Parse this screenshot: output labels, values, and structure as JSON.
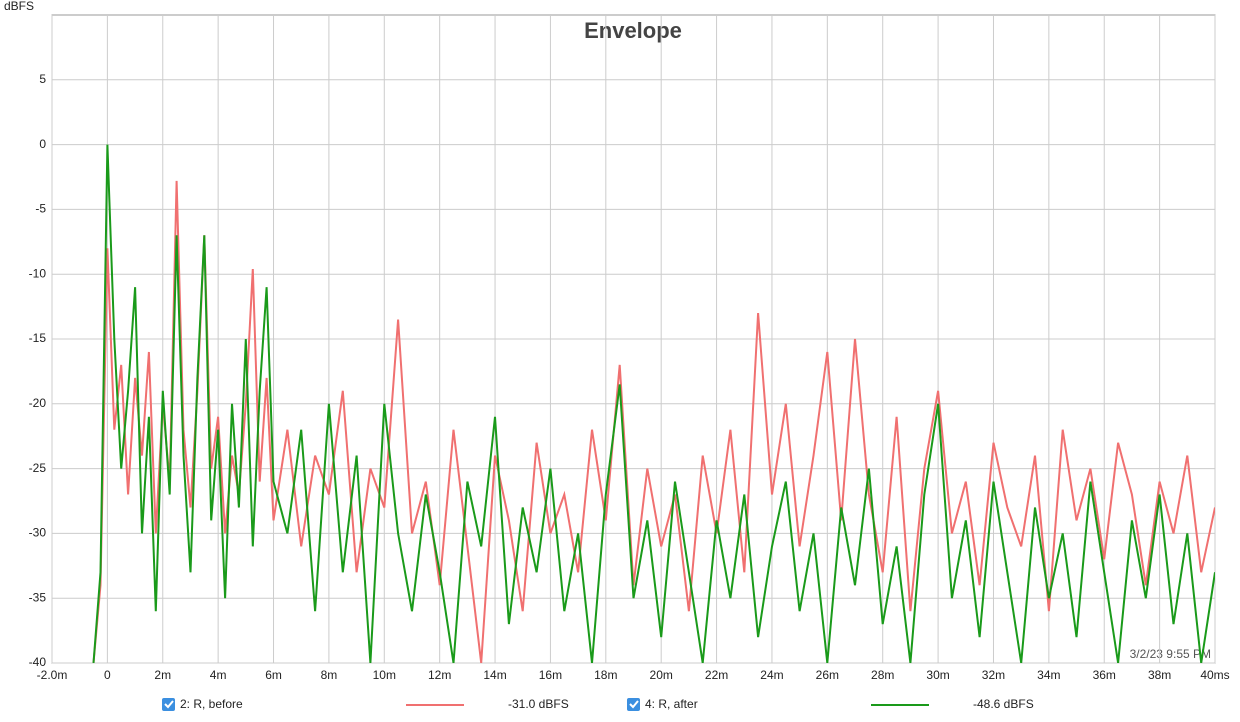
{
  "chart_data": {
    "type": "line",
    "title": "Envelope",
    "y_label": "dBFS",
    "timestamp": "3/2/23 9:55 PM",
    "grid": true,
    "xlim": [
      -2,
      40
    ],
    "ylim": [
      -40,
      10
    ],
    "yticks": [
      -40,
      -35,
      -30,
      -25,
      -20,
      -15,
      -10,
      -5,
      0,
      5
    ],
    "xticks": [
      {
        "value": -2,
        "label": "-2.0m"
      },
      0,
      {
        "value": 2,
        "label": "2m"
      },
      {
        "value": 4,
        "label": "4m"
      },
      {
        "value": 6,
        "label": "6m"
      },
      {
        "value": 8,
        "label": "8m"
      },
      {
        "value": 10,
        "label": "10m"
      },
      {
        "value": 12,
        "label": "12m"
      },
      {
        "value": 14,
        "label": "14m"
      },
      {
        "value": 16,
        "label": "16m"
      },
      {
        "value": 18,
        "label": "18m"
      },
      {
        "value": 20,
        "label": "20m"
      },
      {
        "value": 22,
        "label": "22m"
      },
      {
        "value": 24,
        "label": "24m"
      },
      {
        "value": 26,
        "label": "26m"
      },
      {
        "value": 28,
        "label": "28m"
      },
      {
        "value": 30,
        "label": "30m"
      },
      {
        "value": 32,
        "label": "32m"
      },
      {
        "value": 34,
        "label": "34m"
      },
      {
        "value": 36,
        "label": "36m"
      },
      {
        "value": 38,
        "label": "38m"
      },
      {
        "value": 40,
        "label": "40ms"
      }
    ],
    "x": [
      -0.5,
      -0.25,
      0,
      0.25,
      0.5,
      0.75,
      1,
      1.25,
      1.5,
      1.75,
      2,
      2.25,
      2.5,
      2.75,
      3,
      3.25,
      3.5,
      3.75,
      4,
      4.25,
      4.5,
      4.75,
      5,
      5.25,
      5.5,
      5.75,
      6,
      6.5,
      7,
      7.5,
      8,
      8.5,
      9,
      9.5,
      10,
      10.5,
      11,
      11.5,
      12,
      12.5,
      13,
      13.5,
      14,
      14.5,
      15,
      15.5,
      16,
      16.5,
      17,
      17.5,
      18,
      18.5,
      19,
      19.5,
      20,
      20.5,
      21,
      21.5,
      22,
      22.5,
      23,
      23.5,
      24,
      24.5,
      25,
      25.5,
      26,
      26.5,
      27,
      27.5,
      28,
      28.5,
      29,
      29.5,
      30,
      30.5,
      31,
      31.5,
      32,
      32.5,
      33,
      33.5,
      34,
      34.5,
      35,
      35.5,
      36,
      36.5,
      37,
      37.5,
      38,
      38.5,
      39,
      39.5,
      40
    ],
    "series": [
      {
        "name": "2: R, before",
        "level": "-31.0 dBFS",
        "color": "#f07070",
        "values": [
          -40,
          -34,
          -8,
          -22,
          -17,
          -27,
          -18,
          -24,
          -16,
          -30,
          -20,
          -26,
          -2.8,
          -22,
          -28,
          -19,
          -7,
          -25,
          -21,
          -30,
          -24,
          -27,
          -20,
          -9.6,
          -26,
          -18,
          -29,
          -22,
          -31,
          -24,
          -27,
          -19,
          -33,
          -25,
          -28,
          -13.5,
          -30,
          -26,
          -34,
          -22,
          -31,
          -40,
          -24,
          -29,
          -36,
          -23,
          -30,
          -27,
          -33,
          -22,
          -29,
          -17,
          -34,
          -25,
          -31,
          -27,
          -36,
          -24,
          -30,
          -22,
          -33,
          -13,
          -27,
          -20,
          -31,
          -24,
          -16,
          -29,
          -15,
          -27,
          -33,
          -21,
          -36,
          -25,
          -19,
          -30,
          -26,
          -34,
          -23,
          -28,
          -31,
          -24,
          -36,
          -22,
          -29,
          -25,
          -32,
          -23,
          -27,
          -34,
          -26,
          -30,
          -24,
          -33,
          -28
        ]
      },
      {
        "name": "4: R, after",
        "level": "-48.6 dBFS",
        "color": "#1a9a1a",
        "values": [
          -40,
          -33,
          0,
          -15,
          -25,
          -19,
          -11,
          -30,
          -21,
          -36,
          -19,
          -27,
          -7,
          -24,
          -33,
          -18,
          -7,
          -29,
          -22,
          -35,
          -20,
          -28,
          -15,
          -31,
          -19,
          -11,
          -26,
          -30,
          -22,
          -36,
          -20,
          -33,
          -24,
          -40,
          -20,
          -30,
          -36,
          -27,
          -33,
          -40,
          -26,
          -31,
          -21,
          -37,
          -28,
          -33,
          -25,
          -36,
          -30,
          -40,
          -27,
          -18.5,
          -35,
          -29,
          -38,
          -26,
          -33,
          -40,
          -29,
          -35,
          -27,
          -38,
          -31,
          -26,
          -36,
          -30,
          -40,
          -28,
          -34,
          -25,
          -37,
          -31,
          -40,
          -27,
          -20,
          -35,
          -29,
          -38,
          -26,
          -33,
          -40,
          -28,
          -35,
          -30,
          -38,
          -26,
          -33,
          -40,
          -29,
          -35,
          -27,
          -37,
          -30,
          -40,
          -33
        ]
      }
    ]
  }
}
